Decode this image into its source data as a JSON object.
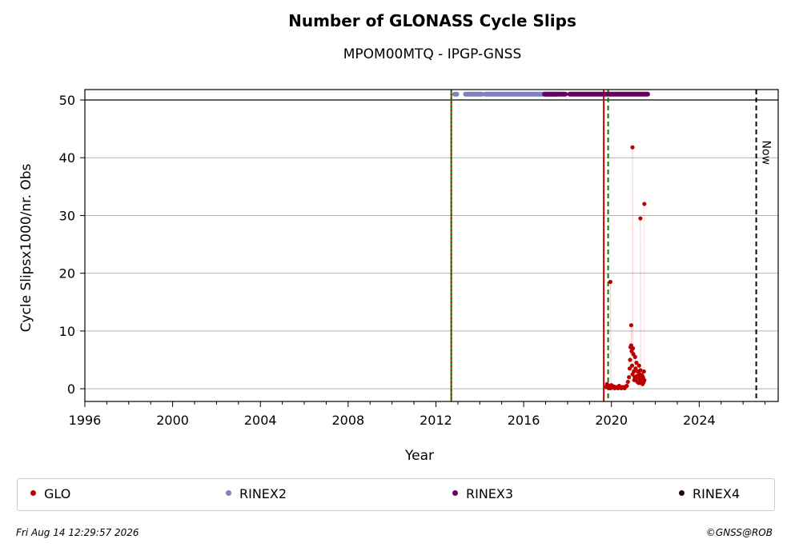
{
  "chart_data": {
    "type": "scatter",
    "title": "Number of GLONASS Cycle Slips",
    "subtitle": "MPOM00MTQ - IPGP-GNSS",
    "xlabel": "Year",
    "ylabel": "Cycle Slipsx1000/nr. Obs",
    "xlim": [
      1996,
      2027.6
    ],
    "ylim": [
      -2.2,
      51.8
    ],
    "x_ticks": [
      1996,
      2000,
      2004,
      2008,
      2012,
      2016,
      2020,
      2024
    ],
    "y_ticks": [
      0,
      10,
      20,
      30,
      40,
      50
    ],
    "grid": "horizontal",
    "reference_lines": [
      {
        "x": 2012.7,
        "color": "#008000",
        "style": "solid"
      },
      {
        "x": 2012.7,
        "color": "#cc0000",
        "style": "dotted"
      },
      {
        "x": 2019.65,
        "color": "#cc0000",
        "style": "solid"
      },
      {
        "x": 2019.85,
        "color": "#008000",
        "style": "dashed"
      },
      {
        "x": 2026.6,
        "color": "#000000",
        "style": "dashed",
        "label": "Now"
      }
    ],
    "top_line_y": 50,
    "series": [
      {
        "name": "GLO",
        "color": "#bb0000",
        "x": [
          2019.75,
          2019.8,
          2019.85,
          2019.9,
          2019.95,
          2020.0,
          2020.05,
          2020.1,
          2020.15,
          2020.2,
          2020.25,
          2020.3,
          2020.35,
          2020.4,
          2020.45,
          2020.5,
          2020.55,
          2020.6,
          2020.65,
          2020.7,
          2020.75,
          2020.8,
          2020.83,
          2020.85,
          2020.87,
          2020.9,
          2020.92,
          2020.94,
          2020.96,
          2020.98,
          2021.0,
          2021.02,
          2021.04,
          2021.06,
          2021.08,
          2021.1,
          2021.12,
          2021.14,
          2021.16,
          2021.18,
          2021.2,
          2021.22,
          2021.24,
          2021.26,
          2021.28,
          2021.3,
          2021.32,
          2021.34,
          2021.36,
          2021.38,
          2021.4,
          2021.42,
          2021.44,
          2021.46,
          2021.48,
          2021.5,
          2019.95,
          2020.9,
          2020.96,
          2021.32,
          2021.5
        ],
        "y": [
          0.3,
          0.8,
          0.2,
          0.5,
          0.1,
          0.6,
          0.2,
          0.4,
          0.1,
          0.3,
          0.2,
          0.1,
          0.5,
          0.2,
          0.1,
          0.3,
          0.2,
          0.1,
          0.4,
          0.5,
          1.2,
          2.0,
          3.5,
          5.0,
          7.2,
          7.5,
          6.5,
          4.0,
          2.5,
          7.0,
          6.0,
          3.0,
          1.5,
          2.0,
          5.5,
          3.5,
          1.8,
          4.5,
          2.2,
          1.2,
          3.0,
          2.0,
          1.0,
          4.0,
          2.5,
          1.5,
          3.2,
          1.8,
          1.0,
          2.4,
          1.3,
          0.8,
          2.0,
          1.1,
          3.0,
          1.5,
          18.5,
          11.0,
          41.8,
          29.5,
          32.0
        ]
      },
      {
        "name": "RINEX2",
        "color": "#8080c0",
        "x": [
          2012.9,
          2013.4,
          2013.9,
          2014.4,
          2014.9,
          2015.4,
          2015.9,
          2016.4,
          2016.9
        ],
        "y": [
          51,
          51,
          51,
          51,
          51,
          51,
          51,
          51,
          51
        ],
        "segments": [
          [
            2012.85,
            2012.95
          ],
          [
            2013.35,
            2014.1
          ],
          [
            2014.25,
            2017.5
          ]
        ]
      },
      {
        "name": "RINEX3",
        "color": "#6a0060",
        "x": [
          2017.0,
          2017.5,
          2018.0,
          2018.5,
          2019.0,
          2019.5,
          2020.0,
          2020.5,
          2021.0,
          2021.5
        ],
        "y": [
          51,
          51,
          51,
          51,
          51,
          51,
          51,
          51,
          51,
          51
        ],
        "segments": [
          [
            2016.95,
            2017.9
          ],
          [
            2018.1,
            2021.65
          ]
        ]
      },
      {
        "name": "RINEX4",
        "color": "#1a0015",
        "x": [],
        "y": []
      }
    ]
  },
  "legend": [
    {
      "label": "GLO",
      "color": "#bb0000"
    },
    {
      "label": "RINEX2",
      "color": "#8080c0"
    },
    {
      "label": "RINEX3",
      "color": "#6a0060"
    },
    {
      "label": "RINEX4",
      "color": "#1a0015"
    }
  ],
  "footer": {
    "timestamp": "Fri Aug 14 12:29:57 2026",
    "credit": "©GNSS@ROB"
  }
}
